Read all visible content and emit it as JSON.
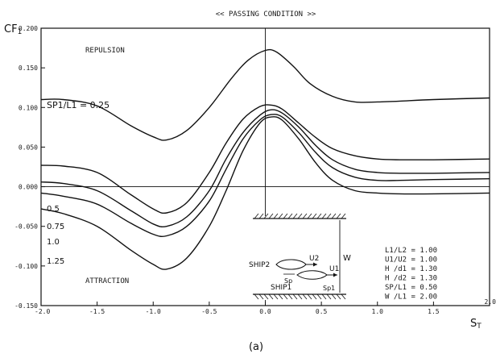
{
  "chart_data": {
    "type": "line",
    "title": "<< PASSING CONDITION >>",
    "ylabel_main": "CF",
    "ylabel_sub": "1",
    "xlabel_main": "S",
    "xlabel_sub": "T",
    "caption": "(a)",
    "xlim": [
      -2.0,
      2.0
    ],
    "ylim": [
      -0.15,
      0.2
    ],
    "xticks": [
      -2.0,
      -1.5,
      -1.0,
      -0.5,
      0.0,
      0.5,
      1.0,
      1.5,
      2.0
    ],
    "xtick_labels": [
      "-2.0",
      "-1.5",
      "-1.0",
      "-0.5",
      "0.0",
      "0.5",
      "1.0",
      "1.5",
      "2.0"
    ],
    "yticks": [
      0.2,
      0.15,
      0.1,
      0.05,
      0.0,
      -0.05,
      -0.1,
      -0.15
    ],
    "ytick_labels": [
      "0.200",
      "0.150",
      "0.100",
      "0.050",
      "0.000",
      "-0.050",
      "-0.100",
      "-0.150"
    ],
    "grid": false,
    "zero_lines": true,
    "annotations": {
      "repulsion": "REPULSION",
      "attraction": "ATTRACTION"
    },
    "series": [
      {
        "name": "SP1/L1 = 0.25",
        "x": [
          -2.0,
          -1.8,
          -1.5,
          -1.2,
          -1.0,
          -0.88,
          -0.7,
          -0.5,
          -0.3,
          -0.15,
          0.0,
          0.1,
          0.25,
          0.4,
          0.6,
          0.8,
          1.0,
          1.2,
          1.5,
          2.0
        ],
        "y": [
          0.11,
          0.11,
          0.102,
          0.077,
          0.063,
          0.059,
          0.071,
          0.1,
          0.137,
          0.16,
          0.172,
          0.17,
          0.152,
          0.13,
          0.114,
          0.107,
          0.107,
          0.108,
          0.11,
          0.112
        ]
      },
      {
        "name": "0.5",
        "x": [
          -2.0,
          -1.8,
          -1.5,
          -1.2,
          -1.0,
          -0.88,
          -0.7,
          -0.5,
          -0.35,
          -0.2,
          -0.05,
          0.05,
          0.15,
          0.3,
          0.45,
          0.6,
          0.8,
          1.0,
          1.2,
          1.5,
          2.0
        ],
        "y": [
          0.027,
          0.026,
          0.018,
          -0.01,
          -0.028,
          -0.033,
          -0.02,
          0.018,
          0.055,
          0.085,
          0.101,
          0.103,
          0.098,
          0.08,
          0.062,
          0.048,
          0.039,
          0.035,
          0.034,
          0.034,
          0.035
        ]
      },
      {
        "name": "0.75",
        "x": [
          -2.0,
          -1.8,
          -1.5,
          -1.2,
          -1.0,
          -0.88,
          -0.7,
          -0.5,
          -0.35,
          -0.2,
          -0.05,
          0.05,
          0.15,
          0.3,
          0.45,
          0.6,
          0.8,
          1.0,
          1.2,
          1.5,
          2.0
        ],
        "y": [
          0.006,
          0.004,
          -0.005,
          -0.03,
          -0.047,
          -0.05,
          -0.038,
          -0.005,
          0.035,
          0.068,
          0.09,
          0.097,
          0.093,
          0.075,
          0.052,
          0.034,
          0.022,
          0.018,
          0.017,
          0.017,
          0.018
        ]
      },
      {
        "name": "1.0",
        "x": [
          -2.0,
          -1.8,
          -1.5,
          -1.2,
          -1.0,
          -0.88,
          -0.7,
          -0.5,
          -0.35,
          -0.2,
          -0.05,
          0.05,
          0.15,
          0.3,
          0.45,
          0.6,
          0.8,
          1.0,
          1.2,
          1.5,
          2.0
        ],
        "y": [
          -0.008,
          -0.012,
          -0.022,
          -0.046,
          -0.06,
          -0.062,
          -0.05,
          -0.018,
          0.022,
          0.06,
          0.084,
          0.091,
          0.088,
          0.068,
          0.043,
          0.024,
          0.012,
          0.008,
          0.008,
          0.009,
          0.01
        ]
      },
      {
        "name": "1.25",
        "x": [
          -2.0,
          -1.8,
          -1.5,
          -1.2,
          -1.0,
          -0.88,
          -0.7,
          -0.5,
          -0.35,
          -0.2,
          -0.05,
          0.05,
          0.15,
          0.3,
          0.45,
          0.6,
          0.8,
          1.0,
          1.2,
          1.5,
          2.0
        ],
        "y": [
          -0.028,
          -0.034,
          -0.05,
          -0.08,
          -0.098,
          -0.104,
          -0.09,
          -0.05,
          -0.005,
          0.045,
          0.08,
          0.088,
          0.084,
          0.06,
          0.03,
          0.008,
          -0.005,
          -0.008,
          -0.009,
          -0.009,
          -0.008
        ]
      }
    ],
    "inset": {
      "ship2_label": "SHIP2",
      "ship1_label": "SHIP1",
      "u2_label": "U2",
      "u1_label": "U1",
      "sp_label": "Sp",
      "sp1_label": "Sp1",
      "w_label": "W"
    },
    "parameters": [
      {
        "name": "L1/L2",
        "value": "1.00"
      },
      {
        "name": "U1/U2",
        "value": "1.00"
      },
      {
        "name": "H /d1",
        "value": "1.30"
      },
      {
        "name": "H /d2",
        "value": "1.30"
      },
      {
        "name": "SP/L1",
        "value": "0.50"
      },
      {
        "name": "W /L1",
        "value": "2.00"
      }
    ]
  }
}
